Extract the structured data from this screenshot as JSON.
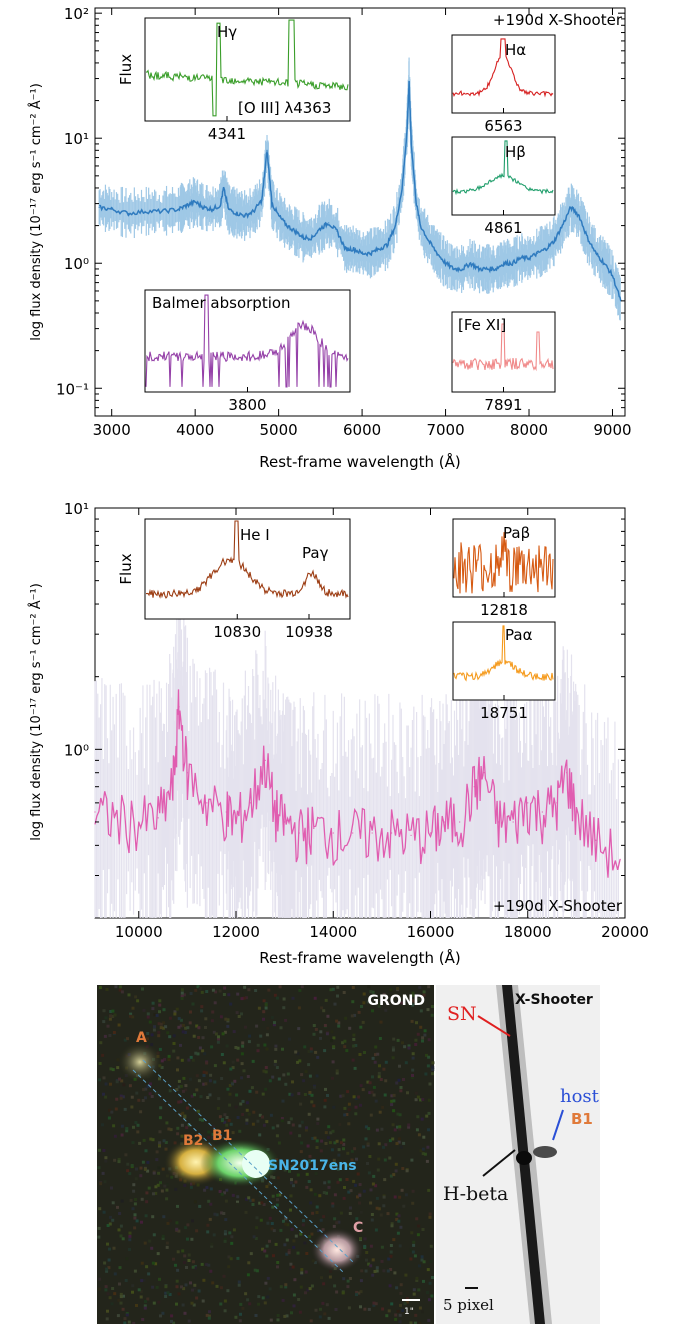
{
  "chart_data": [
    {
      "type": "line",
      "panel": "optical spectrum",
      "xlabel": "Rest-frame wavelength (Å)",
      "ylabel": "log flux density (10⁻¹⁷ erg s⁻¹ cm⁻² Å⁻¹)",
      "xlim": [
        2800,
        9150
      ],
      "ylim": [
        0.06,
        110
      ],
      "yscale": "log",
      "xticks": [
        "3000",
        "4000",
        "5000",
        "6000",
        "7000",
        "8000",
        "9000"
      ],
      "yticks": [
        "10⁻¹",
        "10⁰",
        "10¹",
        "10²"
      ],
      "annotation": "+190d X-Shooter",
      "x": [
        2850,
        3000,
        3200,
        3400,
        3600,
        3800,
        3900,
        4000,
        4100,
        4200,
        4300,
        4341,
        4400,
        4500,
        4600,
        4700,
        4800,
        4861,
        4920,
        5000,
        5100,
        5200,
        5300,
        5400,
        5500,
        5600,
        5700,
        5800,
        5900,
        6000,
        6100,
        6200,
        6300,
        6400,
        6480,
        6540,
        6563,
        6590,
        6650,
        6700,
        6800,
        6900,
        7000,
        7100,
        7200,
        7300,
        7400,
        7500,
        7600,
        7700,
        7800,
        7900,
        8000,
        8100,
        8200,
        8300,
        8400,
        8500,
        8600,
        8700,
        8800,
        8900,
        9000,
        9100
      ],
      "y": [
        2.8,
        2.7,
        2.5,
        2.6,
        2.6,
        2.7,
        2.9,
        3.1,
        2.8,
        2.7,
        2.9,
        4.0,
        2.7,
        2.5,
        2.4,
        2.6,
        3.2,
        8.0,
        3.0,
        2.4,
        2.0,
        1.8,
        1.6,
        1.6,
        1.9,
        2.1,
        1.8,
        1.3,
        1.3,
        1.2,
        1.2,
        1.3,
        1.4,
        2.0,
        4.0,
        12.0,
        28.0,
        9.0,
        3.0,
        2.0,
        1.5,
        1.2,
        1.0,
        0.9,
        0.9,
        1.0,
        0.9,
        0.9,
        0.9,
        1.0,
        1.0,
        1.1,
        1.1,
        1.2,
        1.3,
        1.5,
        2.0,
        2.8,
        2.4,
        1.6,
        1.2,
        1.0,
        0.8,
        0.5
      ],
      "series_color": "#2f7bbf",
      "noise_color": "#9fc8e6",
      "insets": [
        {
          "label": "Hγ",
          "tick": "4341",
          "secondary": "[O III] λ4363",
          "ylabel": "Flux",
          "color": "#3a9e2a"
        },
        {
          "label": "Hα",
          "tick": "6563",
          "color": "#d62020"
        },
        {
          "label": "Hβ",
          "tick": "4861",
          "color": "#1f9e6b"
        },
        {
          "label": "Balmer absorption",
          "tick": "3800",
          "color": "#9541a8"
        },
        {
          "label": "[Fe XI]",
          "tick": "7891",
          "color": "#f08a8a"
        }
      ]
    },
    {
      "type": "line",
      "panel": "nir spectrum",
      "xlabel": "Rest-frame wavelength (Å)",
      "ylabel": "log flux density (10⁻¹⁷ erg s⁻¹ cm⁻² Å⁻¹)",
      "xlim": [
        9100,
        20000
      ],
      "ylim": [
        0.2,
        10
      ],
      "yscale": "log",
      "xticks": [
        "10000",
        "12000",
        "14000",
        "16000",
        "18000",
        "20000"
      ],
      "yticks": [
        "10⁰",
        "10¹"
      ],
      "annotation": "+190d X-Shooter",
      "x": [
        9100,
        9500,
        10000,
        10400,
        10700,
        10830,
        11000,
        11400,
        11800,
        12000,
        12300,
        12600,
        12800,
        13000,
        13300,
        13600,
        14000,
        14400,
        14800,
        15200,
        15600,
        16000,
        16300,
        16600,
        16900,
        17100,
        17400,
        17700,
        18000,
        18300,
        18600,
        18800,
        19000,
        19400,
        19900
      ],
      "y": [
        0.55,
        0.52,
        0.5,
        0.52,
        0.7,
        1.5,
        0.8,
        0.6,
        0.55,
        0.5,
        0.6,
        0.9,
        0.55,
        0.5,
        0.45,
        0.47,
        0.45,
        0.45,
        0.45,
        0.45,
        0.44,
        0.45,
        0.5,
        0.5,
        0.7,
        0.8,
        0.5,
        0.5,
        0.6,
        0.55,
        0.6,
        0.8,
        0.55,
        0.42,
        0.35
      ],
      "series_color": "#e05db0",
      "noise_color": "#e4e2ee",
      "insets": [
        {
          "label": "He I",
          "tick": "10830",
          "secondary": "Paγ",
          "tick2": "10938",
          "ylabel": "Flux",
          "color": "#9c3c12"
        },
        {
          "label": "Paβ",
          "tick": "12818",
          "color": "#d65a12"
        },
        {
          "label": "Paα",
          "tick": "18751",
          "color": "#f59a1c"
        }
      ]
    }
  ],
  "images": {
    "grond": {
      "title": "GROND",
      "labels": [
        "A",
        "B2",
        "B1",
        "C"
      ],
      "target": "SN2017ens",
      "scalebar": "1\""
    },
    "xshooter": {
      "title": "X-Shooter",
      "sn_label": "SN",
      "host_label": "host",
      "b1_label": "B1",
      "line_label": "H-beta",
      "scale_label": "5 pixel"
    }
  }
}
